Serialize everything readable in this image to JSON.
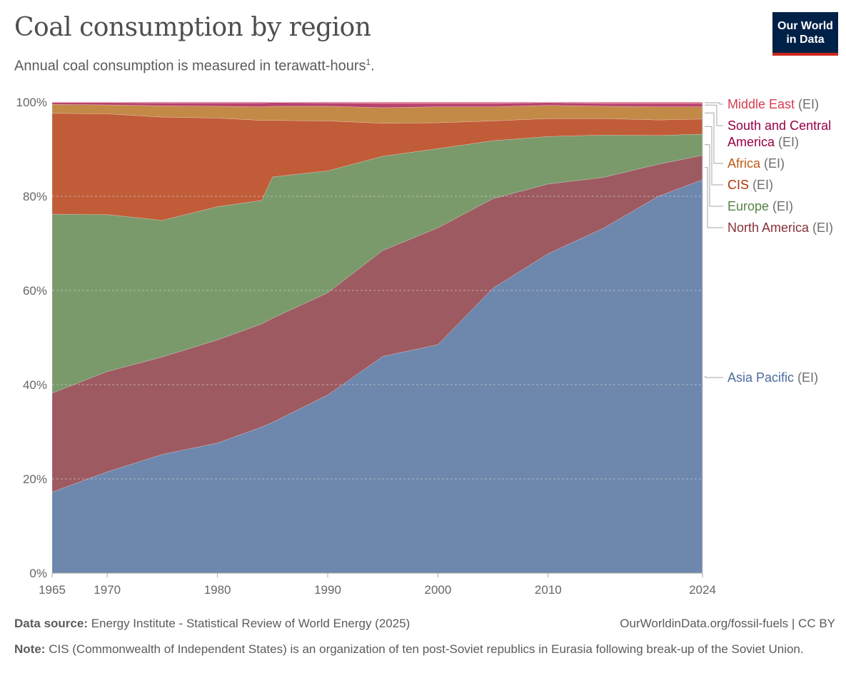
{
  "header": {
    "title": "Coal consumption by region",
    "subtitle": "Annual coal consumption is measured in terawatt-hours",
    "subtitle_sup": "1",
    "subtitle_end": ".",
    "logo_line1": "Our World",
    "logo_line2": "in Data"
  },
  "footer": {
    "source_label": "Data source:",
    "source_text": "Energy Institute - Statistical Review of World Energy (2025)",
    "url_text": "OurWorldinData.org/fossil-fuels | CC BY",
    "note_label": "Note:",
    "note_text": "CIS (Commonwealth of Independent States) is an organization of ten post-Soviet republics in Eurasia following break-up of the Soviet Union."
  },
  "chart_data": {
    "type": "area",
    "stacked": true,
    "relative": true,
    "title": "Coal consumption by region",
    "subtitle": "Annual coal consumption is measured in terawatt-hours¹.",
    "xlim": [
      1965,
      2024
    ],
    "ylim": [
      0,
      100
    ],
    "x_ticks": [
      1965,
      1970,
      1980,
      1990,
      2000,
      2010,
      2024
    ],
    "y_ticks": [
      0,
      20,
      40,
      60,
      80,
      100
    ],
    "y_tick_labels": [
      "0%",
      "20%",
      "40%",
      "60%",
      "80%",
      "100%"
    ],
    "grid": "horizontal-dotted",
    "legend_placement": "right",
    "x": [
      1965,
      1970,
      1975,
      1980,
      1984,
      1985,
      1990,
      1995,
      2000,
      2005,
      2010,
      2015,
      2020,
      2024
    ],
    "series": [
      {
        "name": "Asia Pacific",
        "suffix": "(EI)",
        "color": "#6d87ad",
        "label_color": "#4c6a9c",
        "values": [
          17.2,
          21.5,
          25.2,
          27.6,
          31.0,
          32.0,
          37.8,
          46.0,
          48.5,
          60.5,
          67.8,
          73.2,
          80.0,
          83.5
        ]
      },
      {
        "name": "North America",
        "suffix": "(EI)",
        "color": "#9e5a61",
        "label_color": "#883039",
        "values": [
          21.0,
          21.3,
          20.7,
          21.9,
          21.9,
          22.1,
          21.7,
          22.5,
          24.8,
          19.0,
          14.8,
          10.8,
          6.8,
          5.2
        ]
      },
      {
        "name": "Europe",
        "suffix": "(EI)",
        "color": "#7a9a6c",
        "label_color": "#578145",
        "values": [
          38.0,
          33.3,
          29.0,
          28.3,
          26.2,
          30.0,
          25.9,
          20.0,
          16.8,
          12.3,
          10.1,
          9.0,
          6.1,
          4.5
        ]
      },
      {
        "name": "CIS",
        "suffix": "(EI)",
        "color": "#c15c39",
        "label_color": "#b13507",
        "values": [
          21.4,
          21.4,
          21.9,
          18.8,
          17.0,
          12.0,
          10.6,
          7.0,
          5.5,
          4.2,
          3.8,
          3.5,
          3.3,
          3.2
        ]
      },
      {
        "name": "Africa",
        "suffix": "(EI)",
        "color": "#c38947",
        "label_color": "#c05917",
        "values": [
          1.9,
          1.9,
          2.4,
          2.5,
          2.9,
          3.0,
          3.1,
          3.3,
          3.4,
          3.0,
          2.8,
          2.6,
          2.8,
          2.6
        ]
      },
      {
        "name": "South and Central America",
        "suffix": "(EI)",
        "color": "#b8436e",
        "label_color": "#970046",
        "values": [
          0.4,
          0.5,
          0.6,
          0.7,
          0.8,
          0.8,
          0.7,
          0.9,
          0.7,
          0.7,
          0.6,
          0.6,
          0.7,
          0.7
        ]
      },
      {
        "name": "Middle East",
        "suffix": "(EI)",
        "color": "#e3728d",
        "label_color": "#d73c50",
        "values": [
          0.1,
          0.1,
          0.2,
          0.2,
          0.2,
          0.1,
          0.2,
          0.3,
          0.3,
          0.3,
          0.1,
          0.3,
          0.3,
          0.3
        ]
      }
    ]
  }
}
